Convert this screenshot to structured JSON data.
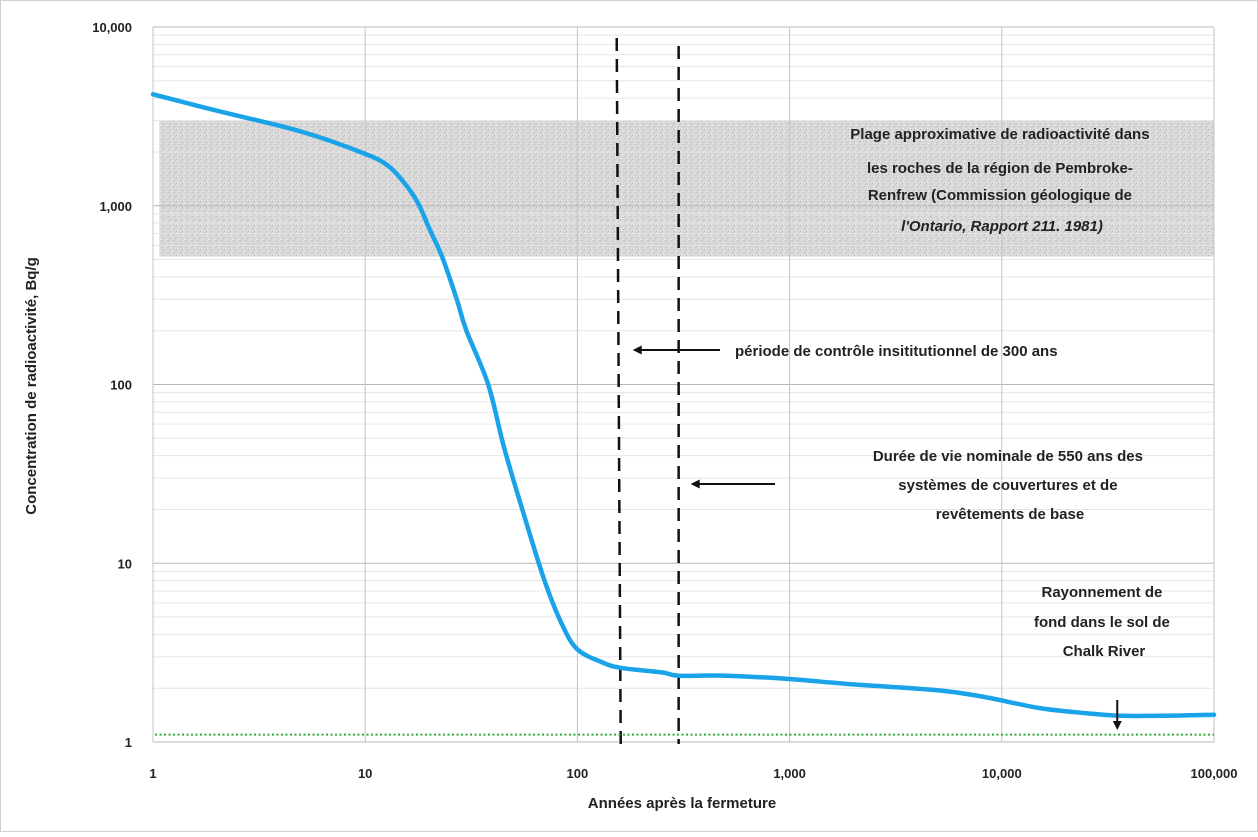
{
  "chart_data": {
    "type": "line",
    "title": "",
    "xlabel": "Années après la fermeture",
    "ylabel": "Concentration de radioactivité, Bq/g",
    "x_scale": "log",
    "y_scale": "log",
    "xlim": [
      1,
      100000
    ],
    "ylim": [
      1,
      10000
    ],
    "x_tick_labels": [
      "1",
      "10",
      "100",
      "1,000",
      "10,000",
      "100,000"
    ],
    "y_tick_labels": [
      "1",
      "10",
      "100",
      "1,000",
      "10,000"
    ],
    "grid": true,
    "series": [
      {
        "color": "#1aa3e8",
        "points": [
          [
            1,
            4200
          ],
          [
            2,
            3400
          ],
          [
            5,
            2600
          ],
          [
            10,
            1950
          ],
          [
            13,
            1650
          ],
          [
            16,
            1250
          ],
          [
            18,
            1000
          ],
          [
            20,
            750
          ],
          [
            23,
            520
          ],
          [
            27,
            300
          ],
          [
            30,
            200
          ],
          [
            38,
            100
          ],
          [
            45,
            45
          ],
          [
            55,
            20
          ],
          [
            70,
            8
          ],
          [
            85,
            4.5
          ],
          [
            100,
            3.3
          ],
          [
            130,
            2.8
          ],
          [
            160,
            2.6
          ],
          [
            250,
            2.45
          ],
          [
            300,
            2.35
          ],
          [
            500,
            2.35
          ],
          [
            1000,
            2.25
          ],
          [
            2000,
            2.1
          ],
          [
            5000,
            1.95
          ],
          [
            8000,
            1.8
          ],
          [
            15000,
            1.55
          ],
          [
            25000,
            1.45
          ],
          [
            40000,
            1.4
          ],
          [
            100000,
            1.42
          ]
        ]
      }
    ],
    "background_level": {
      "value": 1.1,
      "color": "#2eaa3a"
    },
    "rock_band": {
      "min": 520,
      "max": 3000
    },
    "vertical_lines": [
      160,
      300
    ],
    "annotations": {
      "rock_range": [
        "Plage approximative de radioactivité dans",
        "les roches de la région de Pembroke-",
        "Renfrew  (Commission géologique de",
        "l'Ontario, Rapport 211. 1981)"
      ],
      "control_period": "période de contrôle insititutionnel de 300 ans",
      "design_life": [
        "Durée de vie nominale de 550 ans des",
        "systèmes de couvertures et de",
        "revêtements de base"
      ],
      "background": [
        "Rayonnement de",
        "fond dans le sol de",
        "Chalk River"
      ]
    }
  }
}
